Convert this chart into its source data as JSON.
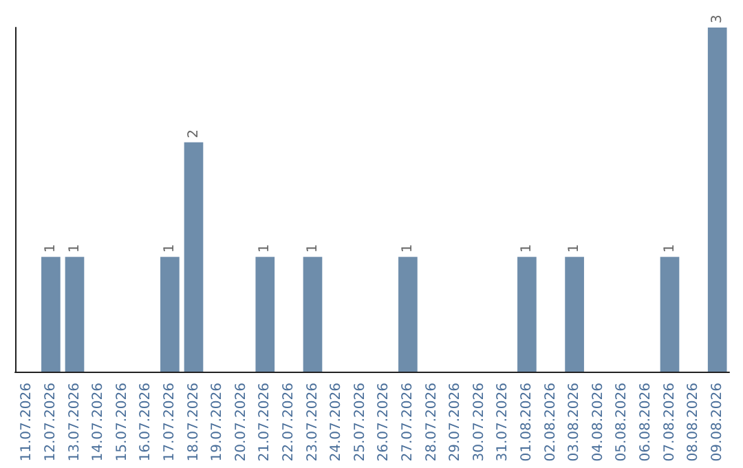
{
  "chart_data": {
    "type": "bar",
    "categories": [
      "11.07.2026",
      "12.07.2026",
      "13.07.2026",
      "14.07.2026",
      "15.07.2026",
      "16.07.2026",
      "17.07.2026",
      "18.07.2026",
      "19.07.2026",
      "20.07.2026",
      "21.07.2026",
      "22.07.2026",
      "23.07.2026",
      "24.07.2026",
      "25.07.2026",
      "26.07.2026",
      "27.07.2026",
      "28.07.2026",
      "29.07.2026",
      "30.07.2026",
      "31.07.2026",
      "01.08.2026",
      "02.08.2026",
      "03.08.2026",
      "04.08.2026",
      "05.08.2026",
      "06.08.2026",
      "07.08.2026",
      "08.08.2026",
      "09.08.2026"
    ],
    "values": [
      0,
      1,
      1,
      0,
      0,
      0,
      1,
      2,
      0,
      0,
      1,
      0,
      1,
      0,
      0,
      0,
      1,
      0,
      0,
      0,
      0,
      1,
      0,
      1,
      0,
      0,
      0,
      1,
      0,
      3
    ],
    "value_labels": [
      null,
      "1",
      "1",
      null,
      null,
      null,
      "1",
      "2",
      null,
      null,
      "1",
      null,
      "1",
      null,
      null,
      null,
      "1",
      null,
      null,
      null,
      null,
      "1",
      null,
      "1",
      null,
      null,
      null,
      "1",
      null,
      "3"
    ],
    "color": "#6e8dab",
    "tick_labels": "x",
    "grid": false
  }
}
